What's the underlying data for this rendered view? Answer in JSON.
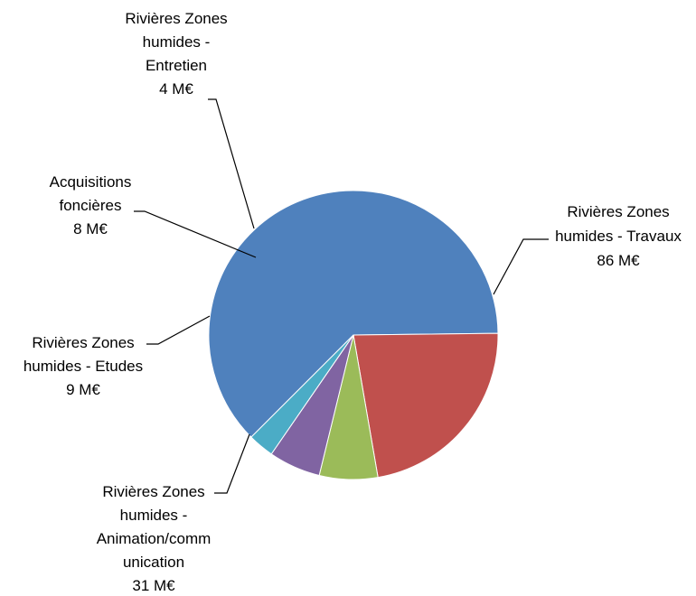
{
  "chart_data": {
    "type": "pie",
    "slices": [
      {
        "label": "Rivières Zones humides - Travaux",
        "label_lines": [
          "Rivières Zones",
          "humides - Travaux"
        ],
        "value": 86,
        "value_text": "86 M€",
        "color": "#4F81BD"
      },
      {
        "label": "Rivières Zones humides - Animation/communication",
        "label_lines": [
          "Rivières Zones",
          "humides -",
          "Animation/comm",
          "unication"
        ],
        "value": 31,
        "value_text": "31 M€",
        "color": "#C0504D"
      },
      {
        "label": "Rivières Zones humides - Etudes",
        "label_lines": [
          "Rivières Zones",
          "humides - Etudes"
        ],
        "value": 9,
        "value_text": "9 M€",
        "color": "#9BBB59"
      },
      {
        "label": "Acquisitions foncières",
        "label_lines": [
          "Acquisitions",
          "foncières"
        ],
        "value": 8,
        "value_text": "8 M€",
        "color": "#8064A2"
      },
      {
        "label": "Rivières Zones humides - Entretien",
        "label_lines": [
          "Rivières Zones",
          "humides -",
          "Entretien"
        ],
        "value": 4,
        "value_text": "4 M€",
        "color": "#4BACC6"
      }
    ],
    "unit": "M€",
    "legend": "none",
    "data_labels": "outside-with-leader-lines"
  }
}
